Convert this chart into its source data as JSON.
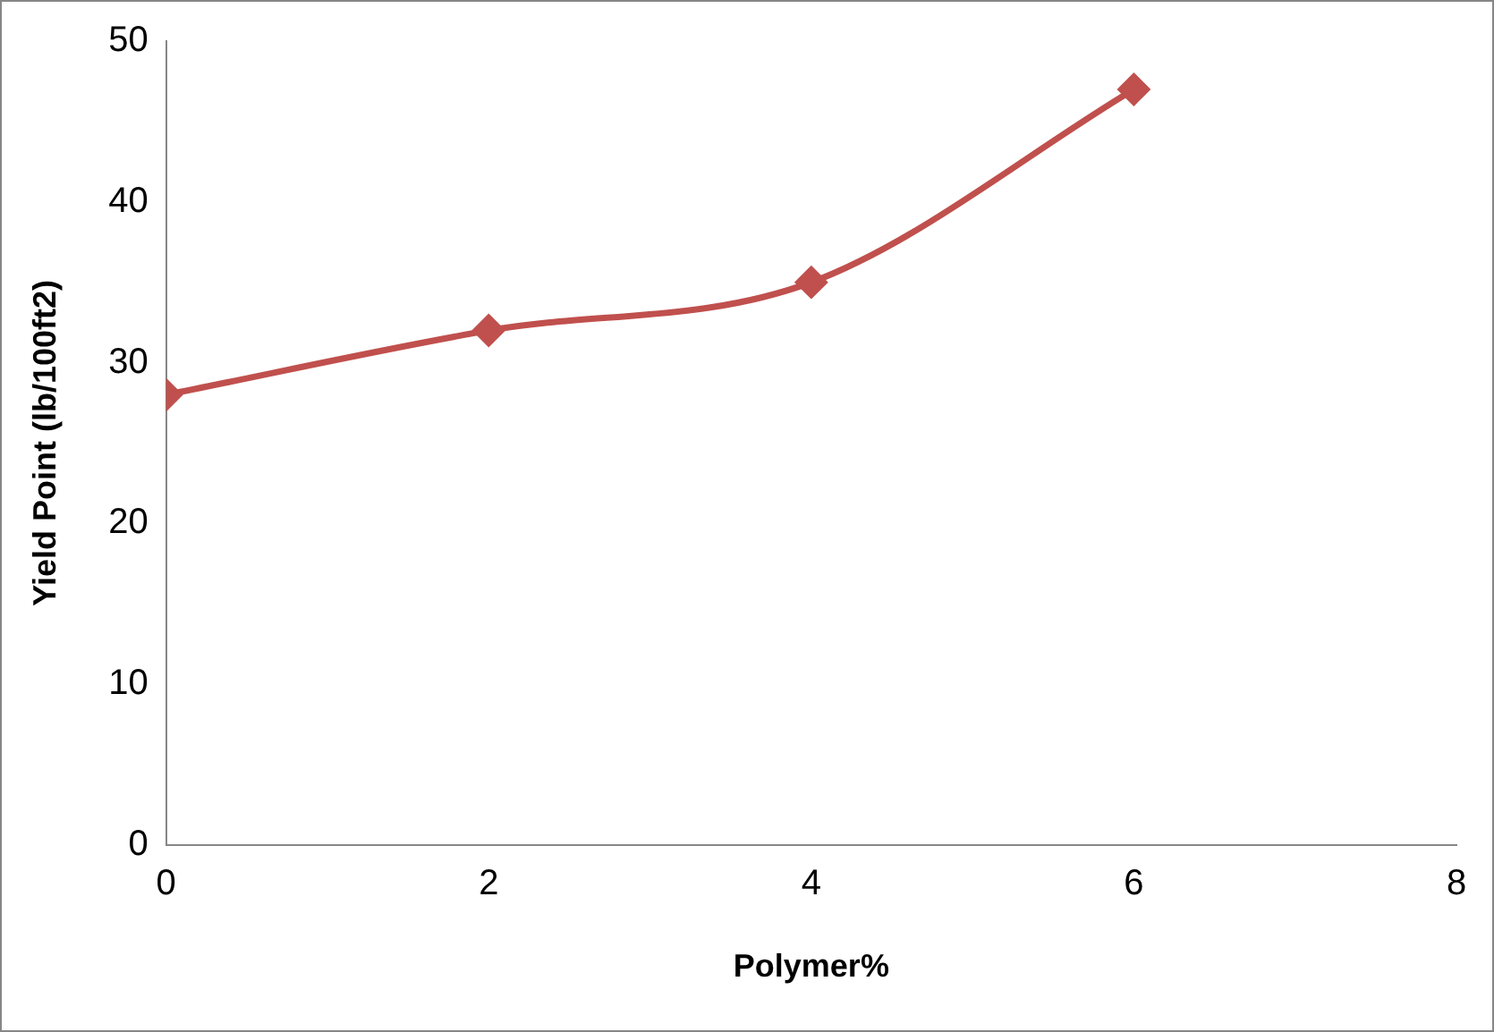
{
  "chart_data": {
    "type": "line",
    "xlabel": "Polymer%",
    "ylabel": "Yield Point (lb/100ft2)",
    "x": [
      0,
      2,
      4,
      6
    ],
    "series": [
      {
        "color": "#c0504d",
        "values": [
          28,
          32,
          35,
          47
        ]
      }
    ],
    "xlim": [
      0,
      8
    ],
    "xticks": [
      0,
      2,
      4,
      6,
      8
    ],
    "ylim": [
      0,
      50
    ],
    "yticks": [
      0,
      10,
      20,
      30,
      40,
      50
    ],
    "grid": false,
    "legend": false,
    "marker": "diamond",
    "line_style": "solid"
  }
}
